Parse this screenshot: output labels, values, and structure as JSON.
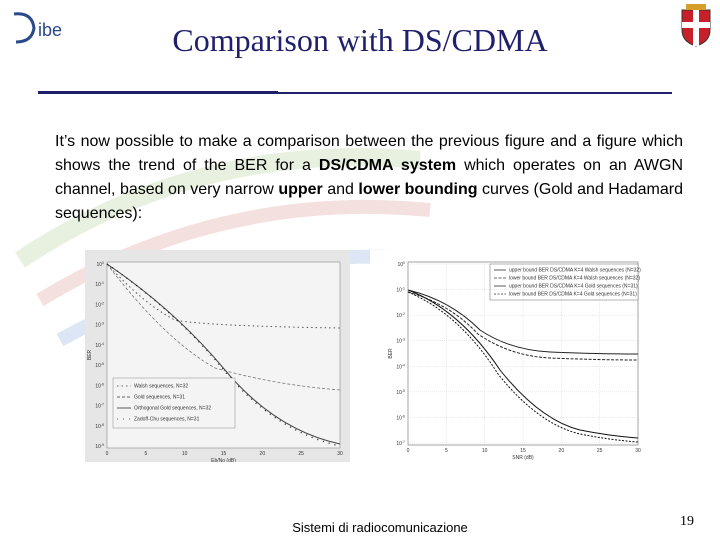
{
  "header": {
    "logo": "ibe",
    "title": "Comparison with DS/CDMA"
  },
  "body": {
    "runs": [
      {
        "text": "It’s now possible to make a comparison between the previous figure and a figure which shows the trend of the BER for a ",
        "bold": false
      },
      {
        "text": "DS/CDMA system",
        "bold": true
      },
      {
        "text": " which operates on an AWGN channel, based on very narrow ",
        "bold": false
      },
      {
        "text": "upper",
        "bold": true
      },
      {
        "text": " and ",
        "bold": false
      },
      {
        "text": "lower bounding",
        "bold": true
      },
      {
        "text": " curves (Gold and Hadamard sequences):",
        "bold": false
      }
    ]
  },
  "figures": [
    {
      "x_label": "Eb/No (dB)",
      "y_label": "BER",
      "x_ticks": [
        "0",
        "5",
        "10",
        "15",
        "20",
        "25",
        "30"
      ],
      "y_tick_base": "10",
      "y_tick_exponents": [
        "0",
        "-1",
        "-2",
        "-3",
        "-4",
        "-5",
        "-6",
        "-7",
        "-8",
        "-9"
      ],
      "legend": [
        "Walsh sequences, N=32",
        "Gold sequences, N=31",
        "Orthogonal Gold sequences, N=32",
        "Zadoff-Chu sequences, N=31"
      ]
    },
    {
      "x_label": "SNR (dB)",
      "y_label": "BER",
      "x_ticks": [
        "0",
        "5",
        "10",
        "15",
        "20",
        "25",
        "30"
      ],
      "y_tick_base": "10",
      "y_tick_exponents": [
        "0",
        "-1",
        "-2",
        "-3",
        "-4",
        "-5",
        "-6",
        "-7"
      ],
      "legend": [
        "upper bound BER DS/CDMA K=4 Walsh sequences (N=32)",
        "lower bound BER DS/CDMA K=4 Walsh sequences (N=32)",
        "upper bound BER DS/CDMA K=4 Gold sequences (N=31)",
        "lower bound BER DS/CDMA K=4 Gold sequences (N=31)"
      ]
    }
  ],
  "footer": {
    "text": "Sistemi di radiocomunicazione",
    "page": "19"
  }
}
